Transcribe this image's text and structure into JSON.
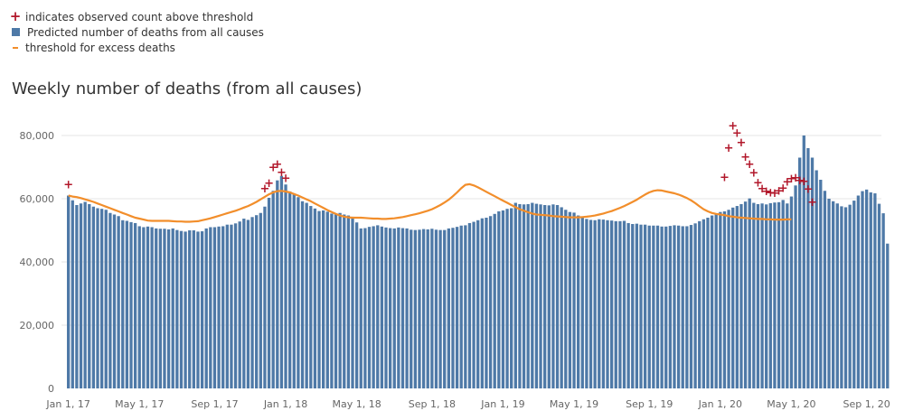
{
  "legend": {
    "observed_label": "indicates observed count above threshold",
    "predicted_label": "Predicted number of deaths from all causes",
    "threshold_label": "threshold for excess deaths"
  },
  "colors": {
    "bars": "#4e79a7",
    "threshold": "#f28e2b",
    "observed_marker": "#b2182b",
    "grid": "#e6e6e6",
    "axis_text": "#666666"
  },
  "chart_data": {
    "type": "bar",
    "title": "Weekly number of deaths (from all causes)",
    "xlabel": "",
    "ylabel": "",
    "ylim": [
      0,
      90000
    ],
    "y_ticks": [
      {
        "value": 0,
        "label": "0"
      },
      {
        "value": 20000,
        "label": "20,000"
      },
      {
        "value": 40000,
        "label": "40,000"
      },
      {
        "value": 60000,
        "label": "60,000"
      },
      {
        "value": 80000,
        "label": "80,000"
      }
    ],
    "x_ticks": [
      "Jan 1, 17",
      "May 1, 17",
      "Sep 1, 17",
      "Jan 1, 18",
      "May 1, 18",
      "Sep 1, 18",
      "Jan 1, 19",
      "May 1, 19",
      "Sep 1, 19",
      "Jan 1, 20",
      "May 1, 20",
      "Sep 1, 20"
    ],
    "x_tick_week_index": [
      0,
      17,
      35,
      52,
      69,
      87,
      104,
      121,
      139,
      156,
      173,
      191
    ],
    "grid": true,
    "legend_position": "top-left",
    "series": [
      {
        "kind": "bar",
        "values": [
          61000,
          59500,
          58000,
          58500,
          59000,
          58300,
          57500,
          57000,
          56800,
          56500,
          55500,
          55000,
          54500,
          53200,
          53000,
          52600,
          52300,
          51300,
          51000,
          51200,
          51000,
          50600,
          50500,
          50500,
          50300,
          50600,
          50100,
          49800,
          49600,
          50000,
          50000,
          49600,
          49700,
          50600,
          51000,
          51000,
          51200,
          51300,
          51800,
          51800,
          52200,
          52800,
          53700,
          53300,
          54200,
          54800,
          55500,
          57500,
          60300,
          62500,
          65800,
          67200,
          64500,
          62300,
          61500,
          60500,
          59200,
          58700,
          57700,
          56900,
          56100,
          56300,
          55900,
          55300,
          55200,
          55500,
          55000,
          54700,
          54300,
          52500,
          50600,
          50700,
          51100,
          51300,
          51600,
          51200,
          50900,
          50700,
          50600,
          50900,
          50700,
          50600,
          50200,
          50100,
          50200,
          50400,
          50300,
          50500,
          50200,
          50100,
          50100,
          50600,
          50800,
          51100,
          51500,
          51600,
          52300,
          52700,
          53200,
          53800,
          54000,
          54500,
          55200,
          56000,
          56300,
          56800,
          57000,
          58700,
          58300,
          58200,
          58300,
          58700,
          58400,
          58200,
          58000,
          57900,
          58200,
          58000,
          57300,
          56500,
          55800,
          55600,
          54700,
          54100,
          53600,
          53300,
          53200,
          53500,
          53400,
          53200,
          53100,
          52900,
          52900,
          53000,
          52300,
          52000,
          52100,
          51800,
          51800,
          51500,
          51500,
          51500,
          51200,
          51200,
          51400,
          51600,
          51500,
          51300,
          51300,
          51700,
          52200,
          52900,
          53500,
          54000,
          54700,
          55400,
          55800,
          56000,
          56500,
          57200,
          57700,
          58300,
          59100,
          60100,
          58700,
          58300,
          58500,
          58200,
          58600,
          58800,
          58900,
          59600,
          58500,
          60700,
          64200,
          73000,
          80000,
          76000,
          73000,
          69000,
          66000,
          62500,
          60000,
          59200,
          58500,
          57600,
          57300,
          58100,
          59400,
          61000,
          62400,
          62900,
          62000,
          61700,
          58400,
          55400,
          45800
        ]
      },
      {
        "kind": "line",
        "name": "threshold for excess deaths",
        "values": [
          61000,
          60700,
          60500,
          60200,
          59800,
          59400,
          59000,
          58500,
          58000,
          57500,
          57000,
          56500,
          56000,
          55500,
          55000,
          54500,
          54000,
          53700,
          53400,
          53100,
          53000,
          53000,
          53000,
          53000,
          53000,
          52900,
          52800,
          52800,
          52700,
          52700,
          52800,
          52900,
          53200,
          53500,
          53800,
          54200,
          54600,
          55000,
          55400,
          55800,
          56200,
          56700,
          57200,
          57700,
          58300,
          59000,
          59800,
          60600,
          61400,
          62000,
          62400,
          62500,
          62300,
          62000,
          61500,
          61000,
          60400,
          59800,
          59200,
          58500,
          57800,
          57100,
          56400,
          55800,
          55200,
          54700,
          54300,
          54100,
          54000,
          54000,
          54000,
          53900,
          53800,
          53700,
          53700,
          53600,
          53600,
          53700,
          53800,
          54000,
          54200,
          54500,
          54800,
          55100,
          55400,
          55800,
          56200,
          56700,
          57300,
          58000,
          58800,
          59700,
          60800,
          62000,
          63300,
          64400,
          64600,
          64200,
          63600,
          62900,
          62200,
          61500,
          60800,
          60100,
          59400,
          58700,
          58000,
          57300,
          56700,
          56200,
          55700,
          55300,
          55000,
          54900,
          54800,
          54700,
          54500,
          54400,
          54300,
          54200,
          54100,
          54100,
          54100,
          54200,
          54300,
          54500,
          54700,
          55000,
          55300,
          55700,
          56100,
          56600,
          57100,
          57700,
          58300,
          59000,
          59700,
          60500,
          61300,
          62000,
          62500,
          62700,
          62600,
          62300,
          62000,
          61700,
          61300,
          60800,
          60200,
          59500,
          58600,
          57600,
          56700,
          56000,
          55500,
          55200,
          55000,
          54800,
          54500,
          54300,
          54100,
          54000,
          53900,
          53800,
          53700,
          53600,
          53600,
          53500,
          53500,
          53400,
          53400,
          53400,
          53500,
          53500
        ]
      },
      {
        "kind": "marker",
        "name": "indicates observed count above threshold",
        "points": [
          {
            "week": 0,
            "value": 64600
          },
          {
            "week": 47,
            "value": 63300
          },
          {
            "week": 48,
            "value": 65000
          },
          {
            "week": 49,
            "value": 70000
          },
          {
            "week": 50,
            "value": 71000
          },
          {
            "week": 51,
            "value": 68500
          },
          {
            "week": 52,
            "value": 66600
          },
          {
            "week": 157,
            "value": 66800
          },
          {
            "week": 158,
            "value": 76200
          },
          {
            "week": 159,
            "value": 83100
          },
          {
            "week": 160,
            "value": 80800
          },
          {
            "week": 161,
            "value": 77800
          },
          {
            "week": 162,
            "value": 73300
          },
          {
            "week": 163,
            "value": 71000
          },
          {
            "week": 164,
            "value": 68300
          },
          {
            "week": 165,
            "value": 65200
          },
          {
            "week": 166,
            "value": 63300
          },
          {
            "week": 167,
            "value": 62500
          },
          {
            "week": 168,
            "value": 62000
          },
          {
            "week": 169,
            "value": 61900
          },
          {
            "week": 170,
            "value": 62600
          },
          {
            "week": 171,
            "value": 63500
          },
          {
            "week": 172,
            "value": 65500
          },
          {
            "week": 173,
            "value": 66500
          },
          {
            "week": 174,
            "value": 66700
          },
          {
            "week": 175,
            "value": 65800
          },
          {
            "week": 176,
            "value": 65600
          },
          {
            "week": 177,
            "value": 63200
          },
          {
            "week": 178,
            "value": 59000
          }
        ]
      }
    ]
  }
}
